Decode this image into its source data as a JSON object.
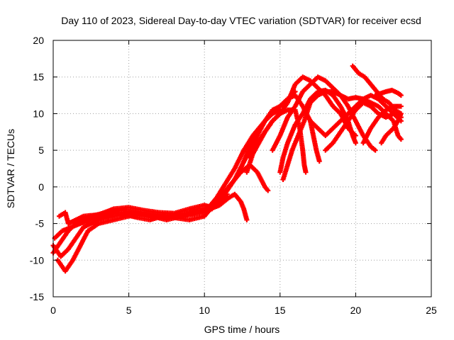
{
  "chart_data": {
    "type": "scatter",
    "title": "Day 110 of 2023, Sidereal Day-to-day VTEC variation (SDTVAR) for receiver ecsd",
    "xlabel": "GPS time / hours",
    "ylabel": "SDTVAR / TECUs",
    "xlim": [
      0,
      25
    ],
    "ylim": [
      -15,
      20
    ],
    "xticks": [
      0,
      5,
      10,
      15,
      20,
      25
    ],
    "yticks": [
      -15,
      -10,
      -5,
      0,
      5,
      10,
      15,
      20
    ],
    "grid": true,
    "marker": "+",
    "series": [
      {
        "name": "SDTVAR",
        "color": "#ff0000",
        "tracks": [
          [
            [
              0.0,
              -8.0
            ],
            [
              0.5,
              -9.5
            ],
            [
              1.0,
              -8.5
            ],
            [
              1.5,
              -7.0
            ],
            [
              2.0,
              -5.5
            ],
            [
              3.0,
              -4.5
            ],
            [
              4.0,
              -4.0
            ],
            [
              5.0,
              -3.5
            ],
            [
              6.0,
              -3.8
            ],
            [
              7.0,
              -4.2
            ],
            [
              8.0,
              -4.0
            ],
            [
              9.0,
              -3.8
            ],
            [
              10.0,
              -3.5
            ],
            [
              10.5,
              -3.0
            ],
            [
              11.0,
              -2.0
            ],
            [
              11.5,
              -0.5
            ],
            [
              12.0,
              1.0
            ],
            [
              12.5,
              3.0
            ],
            [
              13.0,
              5.5
            ],
            [
              13.5,
              7.5
            ],
            [
              14.0,
              9.0
            ],
            [
              14.5,
              10.0
            ],
            [
              15.0,
              10.5
            ]
          ],
          [
            [
              0.0,
              -9.0
            ],
            [
              0.5,
              -7.5
            ],
            [
              1.0,
              -6.0
            ],
            [
              1.5,
              -5.0
            ],
            [
              2.5,
              -4.0
            ],
            [
              3.5,
              -3.5
            ],
            [
              4.5,
              -3.2
            ],
            [
              5.5,
              -3.5
            ],
            [
              6.5,
              -4.0
            ],
            [
              7.5,
              -4.5
            ],
            [
              8.5,
              -4.0
            ],
            [
              9.5,
              -3.5
            ],
            [
              10.2,
              -3.0
            ],
            [
              10.8,
              -1.5
            ],
            [
              11.4,
              0.5
            ],
            [
              12.0,
              2.5
            ],
            [
              12.6,
              5.0
            ],
            [
              13.2,
              7.0
            ],
            [
              13.8,
              8.5
            ],
            [
              14.4,
              10.0
            ],
            [
              15.0,
              11.0
            ],
            [
              15.5,
              12.0
            ],
            [
              16.0,
              13.0
            ]
          ],
          [
            [
              0.3,
              -10.0
            ],
            [
              0.8,
              -11.5
            ],
            [
              1.3,
              -10.0
            ],
            [
              1.8,
              -8.0
            ],
            [
              2.3,
              -6.0
            ],
            [
              3.0,
              -5.0
            ],
            [
              4.0,
              -4.5
            ],
            [
              5.0,
              -4.0
            ],
            [
              6.0,
              -3.5
            ],
            [
              7.0,
              -3.8
            ],
            [
              8.0,
              -4.2
            ],
            [
              9.0,
              -4.5
            ],
            [
              10.0,
              -4.0
            ],
            [
              10.6,
              -2.5
            ],
            [
              11.2,
              -1.0
            ],
            [
              11.8,
              0.5
            ],
            [
              12.4,
              2.0
            ],
            [
              13.0,
              3.0
            ],
            [
              13.5,
              2.0
            ],
            [
              14.0,
              0.0
            ],
            [
              14.2,
              -0.5
            ]
          ],
          [
            [
              0.4,
              -4.0
            ],
            [
              0.8,
              -3.5
            ],
            [
              1.0,
              -5.0
            ],
            [
              1.5,
              -4.5
            ],
            [
              2.0,
              -4.0
            ],
            [
              3.0,
              -3.8
            ],
            [
              4.0,
              -3.0
            ],
            [
              5.0,
              -2.8
            ],
            [
              6.0,
              -3.2
            ],
            [
              7.0,
              -3.5
            ],
            [
              8.0,
              -3.6
            ],
            [
              9.0,
              -3.0
            ],
            [
              10.0,
              -2.5
            ],
            [
              10.5,
              -2.8
            ],
            [
              11.0,
              -2.0
            ],
            [
              11.5,
              -1.0
            ]
          ],
          [
            [
              0.1,
              -7.0
            ],
            [
              0.6,
              -6.0
            ],
            [
              1.2,
              -5.5
            ],
            [
              1.8,
              -5.0
            ],
            [
              2.4,
              -4.5
            ],
            [
              3.2,
              -4.0
            ],
            [
              4.0,
              -3.6
            ],
            [
              4.8,
              -3.8
            ],
            [
              5.6,
              -4.2
            ],
            [
              6.4,
              -4.5
            ],
            [
              7.2,
              -4.0
            ],
            [
              8.0,
              -3.8
            ],
            [
              8.8,
              -3.6
            ],
            [
              9.6,
              -3.2
            ],
            [
              10.4,
              -3.0
            ],
            [
              11.0,
              -2.5
            ],
            [
              11.6,
              -1.5
            ],
            [
              12.0,
              -1.0
            ],
            [
              12.4,
              -2.0
            ],
            [
              12.6,
              -3.0
            ],
            [
              12.8,
              -4.5
            ]
          ],
          [
            [
              12.0,
              1.0
            ],
            [
              12.5,
              3.0
            ],
            [
              13.0,
              5.0
            ],
            [
              13.5,
              7.0
            ],
            [
              14.0,
              9.0
            ],
            [
              14.5,
              10.5
            ],
            [
              15.0,
              11.0
            ],
            [
              15.5,
              12.0
            ],
            [
              16.0,
              12.5
            ],
            [
              16.5,
              11.0
            ],
            [
              17.0,
              9.0
            ],
            [
              17.2,
              7.0
            ],
            [
              17.4,
              5.0
            ],
            [
              17.6,
              3.5
            ]
          ],
          [
            [
              12.8,
              2.0
            ],
            [
              13.2,
              4.5
            ],
            [
              13.6,
              6.0
            ],
            [
              14.0,
              7.5
            ],
            [
              14.5,
              9.0
            ],
            [
              15.0,
              10.0
            ],
            [
              15.5,
              11.5
            ],
            [
              16.0,
              14.0
            ],
            [
              16.5,
              15.0
            ],
            [
              17.0,
              14.5
            ],
            [
              17.5,
              13.5
            ],
            [
              18.0,
              12.5
            ],
            [
              18.5,
              11.0
            ],
            [
              19.0,
              10.0
            ],
            [
              19.5,
              8.0
            ],
            [
              20.0,
              7.0
            ]
          ],
          [
            [
              13.0,
              4.0
            ],
            [
              13.5,
              6.0
            ],
            [
              14.0,
              7.5
            ],
            [
              14.5,
              9.0
            ],
            [
              15.0,
              10.0
            ],
            [
              15.5,
              10.5
            ],
            [
              16.0,
              10.5
            ],
            [
              16.3,
              8.0
            ],
            [
              16.5,
              5.0
            ],
            [
              16.6,
              3.0
            ],
            [
              16.7,
              2.0
            ]
          ],
          [
            [
              14.5,
              5.0
            ],
            [
              15.0,
              7.0
            ],
            [
              15.5,
              9.5
            ],
            [
              16.0,
              11.0
            ],
            [
              16.5,
              13.0
            ],
            [
              17.0,
              14.0
            ],
            [
              17.5,
              15.0
            ],
            [
              18.0,
              14.5
            ],
            [
              18.5,
              13.5
            ],
            [
              19.0,
              12.5
            ],
            [
              19.5,
              11.0
            ],
            [
              20.0,
              9.0
            ],
            [
              20.5,
              7.0
            ],
            [
              21.0,
              5.5
            ],
            [
              21.3,
              5.0
            ]
          ],
          [
            [
              15.0,
              2.0
            ],
            [
              15.2,
              4.0
            ],
            [
              15.5,
              6.0
            ],
            [
              16.0,
              8.5
            ],
            [
              16.5,
              10.0
            ],
            [
              17.0,
              12.0
            ],
            [
              17.5,
              13.0
            ],
            [
              18.0,
              13.2
            ],
            [
              18.5,
              12.5
            ],
            [
              19.0,
              11.0
            ],
            [
              19.5,
              9.0
            ],
            [
              19.8,
              7.0
            ],
            [
              20.0,
              6.0
            ]
          ],
          [
            [
              15.2,
              1.0
            ],
            [
              15.5,
              3.0
            ],
            [
              15.8,
              5.0
            ],
            [
              16.2,
              7.0
            ],
            [
              16.6,
              9.0
            ],
            [
              17.0,
              11.5
            ],
            [
              17.5,
              12.5
            ],
            [
              18.0,
              13.0
            ],
            [
              18.5,
              13.0
            ],
            [
              19.0,
              12.5
            ],
            [
              19.5,
              12.0
            ],
            [
              20.0,
              12.2
            ],
            [
              20.5,
              12.0
            ],
            [
              21.0,
              11.5
            ],
            [
              21.5,
              11.0
            ],
            [
              22.0,
              10.0
            ],
            [
              22.5,
              9.0
            ],
            [
              22.8,
              7.0
            ],
            [
              23.0,
              6.5
            ]
          ],
          [
            [
              17.0,
              9.0
            ],
            [
              17.5,
              8.0
            ],
            [
              18.0,
              7.0
            ],
            [
              18.5,
              8.0
            ],
            [
              19.0,
              9.0
            ],
            [
              19.5,
              10.0
            ],
            [
              20.0,
              11.0
            ],
            [
              20.5,
              12.0
            ],
            [
              21.0,
              12.5
            ],
            [
              21.5,
              12.0
            ],
            [
              22.0,
              11.0
            ],
            [
              22.5,
              10.0
            ],
            [
              23.0,
              9.0
            ]
          ],
          [
            [
              18.0,
              5.0
            ],
            [
              18.5,
              6.0
            ],
            [
              19.0,
              7.5
            ],
            [
              19.5,
              9.0
            ],
            [
              20.0,
              10.5
            ],
            [
              20.5,
              11.5
            ],
            [
              21.0,
              11.0
            ],
            [
              21.5,
              10.0
            ],
            [
              22.0,
              9.5
            ],
            [
              22.5,
              10.0
            ],
            [
              23.0,
              9.5
            ]
          ],
          [
            [
              19.8,
              16.5
            ],
            [
              20.2,
              15.5
            ],
            [
              20.6,
              15.0
            ],
            [
              21.0,
              14.0
            ],
            [
              21.4,
              13.0
            ],
            [
              21.8,
              12.0
            ],
            [
              22.2,
              11.5
            ],
            [
              22.6,
              10.5
            ],
            [
              23.0,
              10.0
            ],
            [
              22.8,
              9.0
            ],
            [
              22.5,
              8.0
            ],
            [
              22.0,
              7.0
            ],
            [
              21.7,
              6.0
            ]
          ],
          [
            [
              20.5,
              6.0
            ],
            [
              21.0,
              8.0
            ],
            [
              21.5,
              9.5
            ],
            [
              22.0,
              10.5
            ],
            [
              22.5,
              11.0
            ],
            [
              23.0,
              11.0
            ]
          ],
          [
            [
              21.3,
              12.5
            ],
            [
              21.7,
              12.8
            ],
            [
              22.0,
              13.0
            ],
            [
              22.4,
              13.2
            ],
            [
              22.8,
              12.8
            ],
            [
              23.0,
              12.5
            ]
          ]
        ]
      }
    ]
  }
}
